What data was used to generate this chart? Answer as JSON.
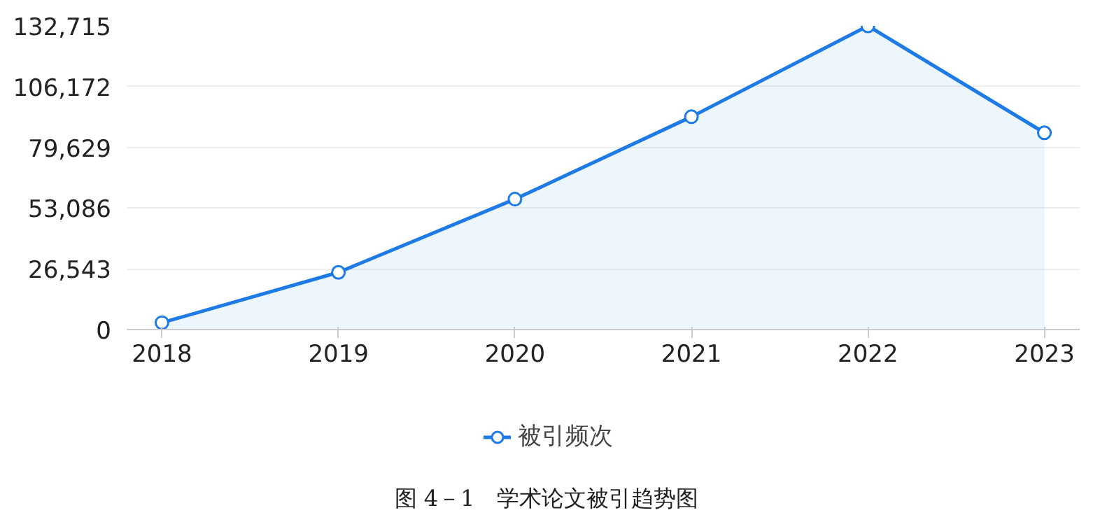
{
  "chart_data": {
    "type": "area",
    "categories": [
      "2018",
      "2019",
      "2020",
      "2021",
      "2022",
      "2023"
    ],
    "series": [
      {
        "name": "被引频次",
        "color": "#1e7be6",
        "values": [
          3000,
          25000,
          57000,
          93000,
          132715,
          86000
        ]
      }
    ],
    "ylim": [
      0,
      132715
    ],
    "yticks": [
      {
        "value": 0,
        "label": "0"
      },
      {
        "value": 26543,
        "label": "26,543"
      },
      {
        "value": 53086,
        "label": "53,086"
      },
      {
        "value": 79629,
        "label": "79,629"
      },
      {
        "value": 106172,
        "label": "106,172"
      },
      {
        "value": 132715,
        "label": "132,715"
      }
    ],
    "grid": "y",
    "legend": "bottom",
    "marker": "circle",
    "line_style": "solid",
    "annotations": [
      "图 4－1　学术论文被引趋势图"
    ]
  }
}
